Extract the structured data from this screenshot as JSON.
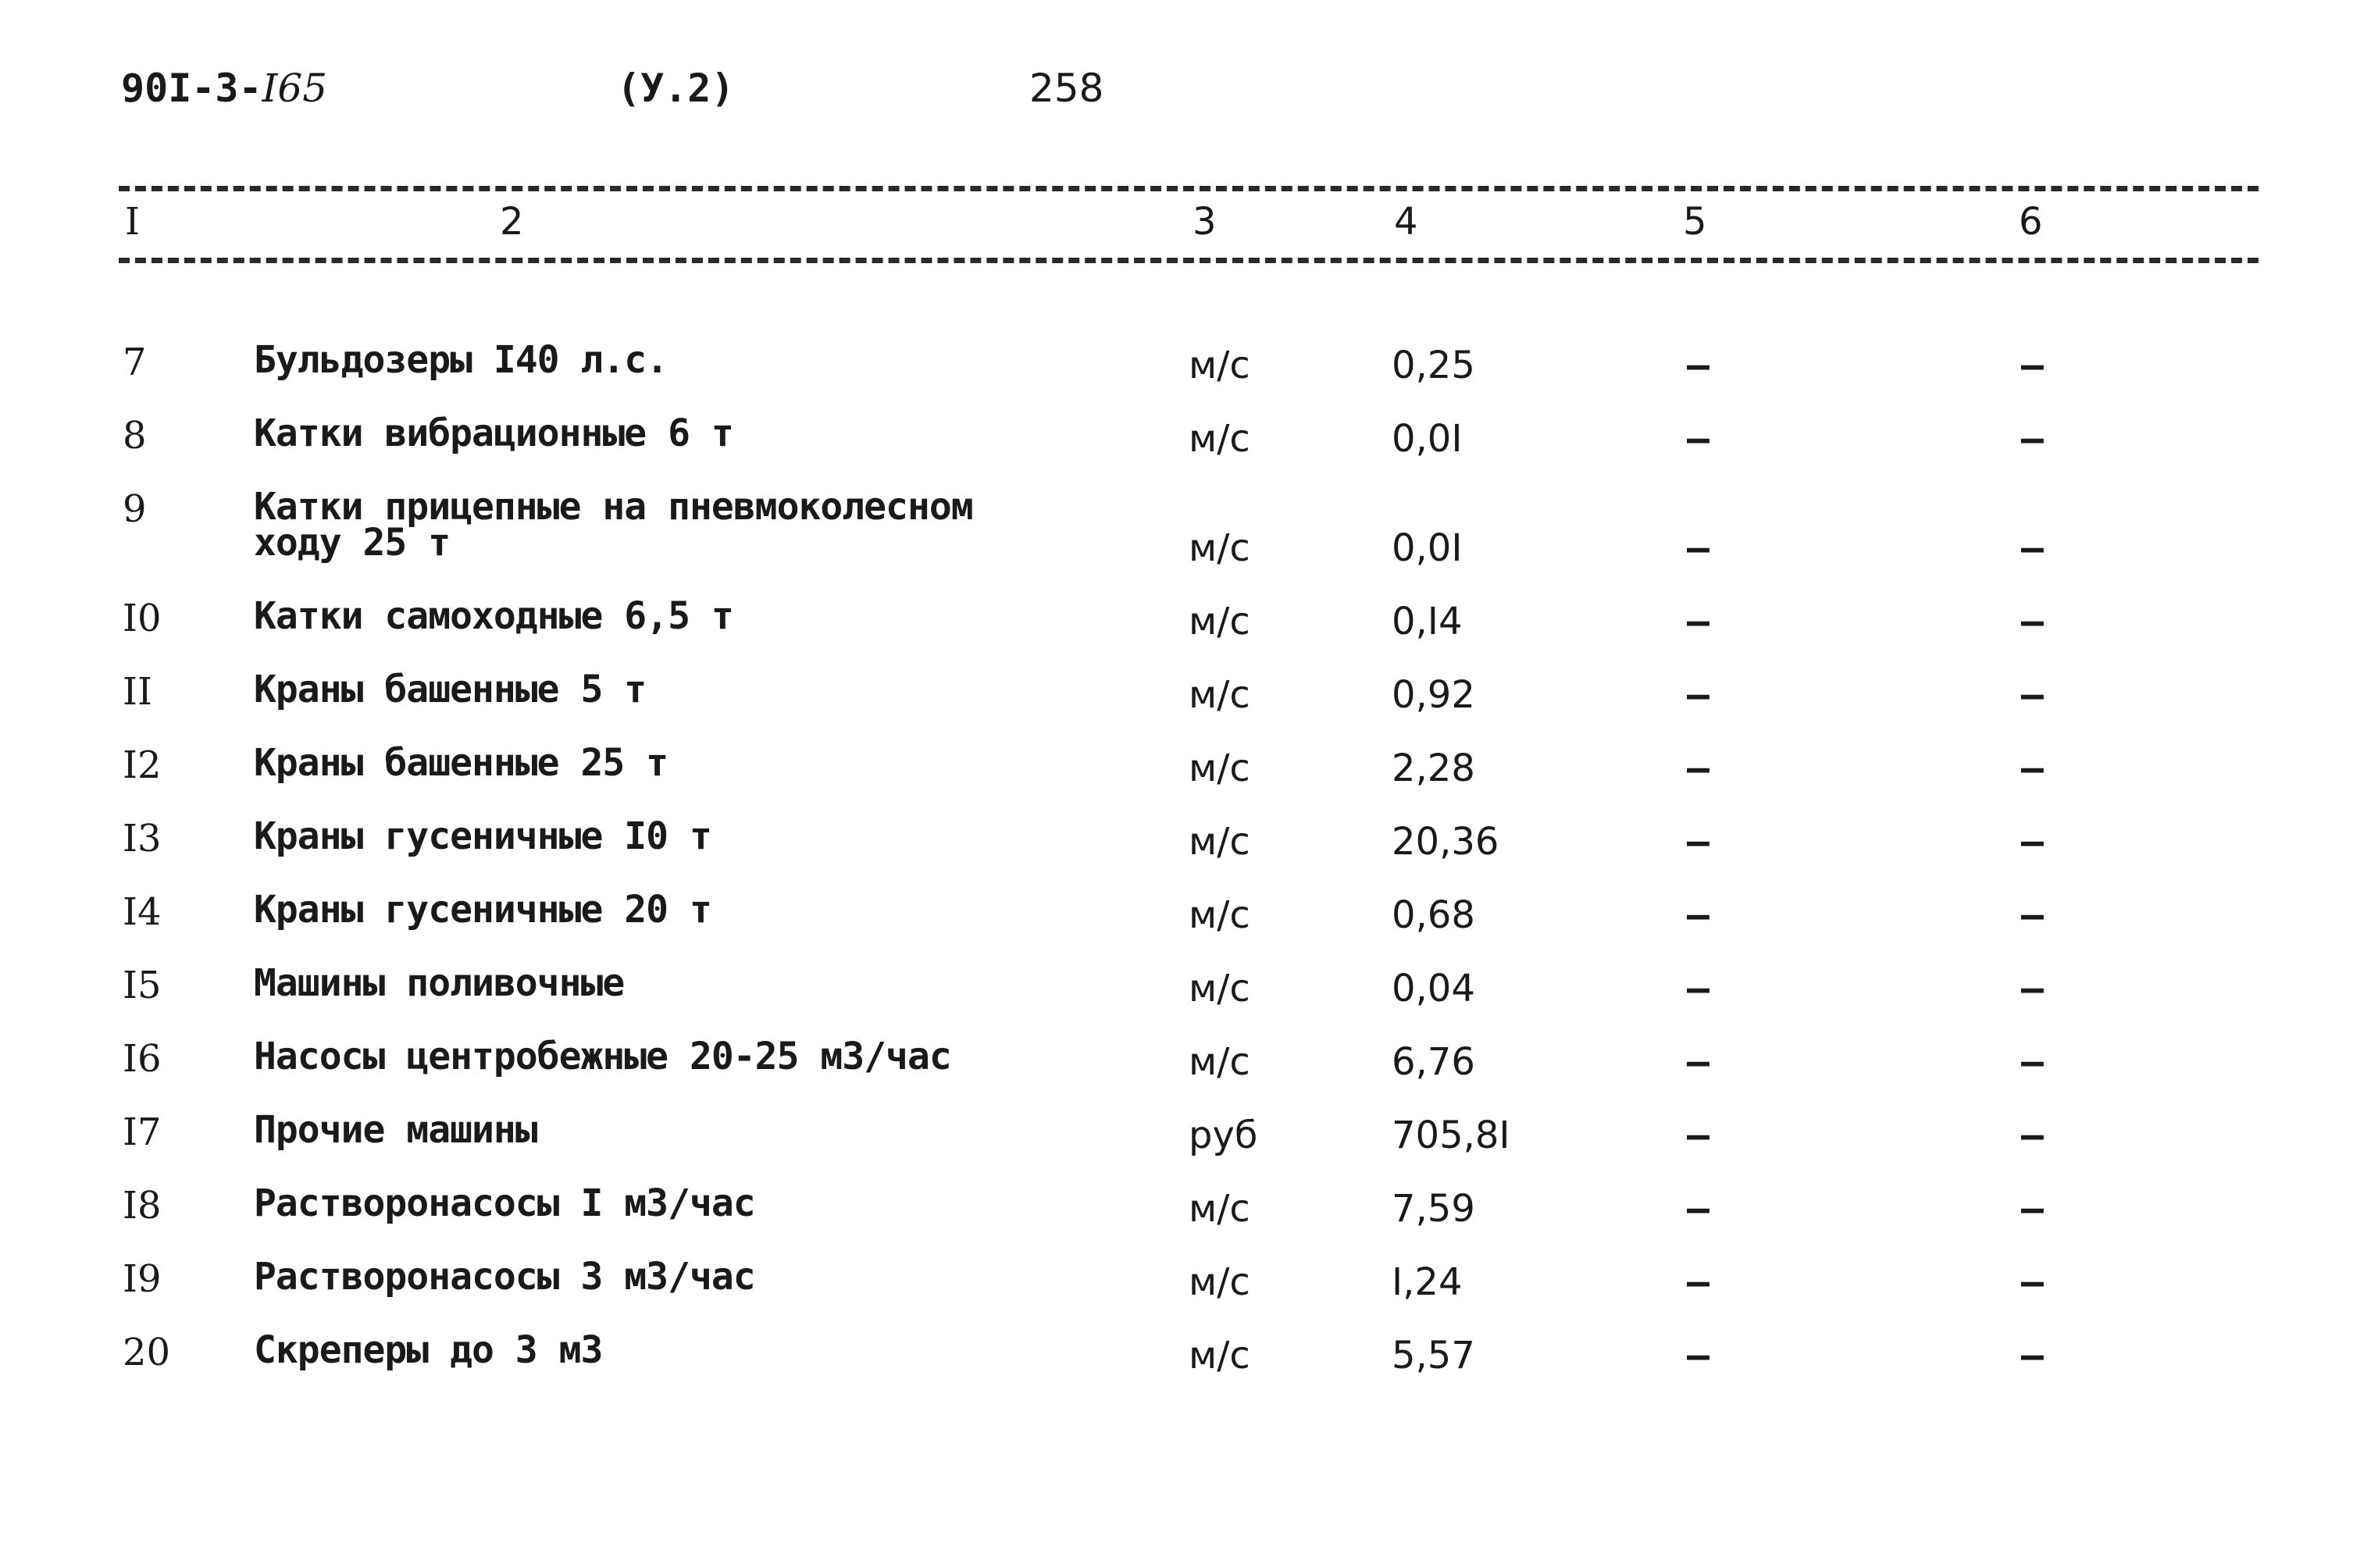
{
  "header": {
    "code_prefix": "90I-3-",
    "code_number": "I65",
    "section": "(У.2)",
    "page_number": "258"
  },
  "columns": [
    "I",
    "2",
    "3",
    "4",
    "5",
    "6"
  ],
  "rows": [
    {
      "num": "7",
      "name": [
        "Бульдозеры I40 л.с."
      ],
      "unit": "м/с",
      "qty": "0,25",
      "c5": "–",
      "c6": "–"
    },
    {
      "num": "8",
      "name": [
        "Катки вибрационные 6 т"
      ],
      "unit": "м/с",
      "qty": "0,0I",
      "c5": "–",
      "c6": "–"
    },
    {
      "num": "9",
      "name": [
        "Катки прицепные на пневмоколесном",
        "ходу 25 т"
      ],
      "unit": "м/с",
      "qty": "0,0I",
      "c5": "–",
      "c6": "–"
    },
    {
      "num": "I0",
      "name": [
        "Катки самоходные 6,5 т"
      ],
      "unit": "м/с",
      "qty": "0,I4",
      "c5": "–",
      "c6": "–"
    },
    {
      "num": "II",
      "name": [
        "Краны башенные 5 т"
      ],
      "unit": "м/с",
      "qty": "0,92",
      "c5": "–",
      "c6": "–"
    },
    {
      "num": "I2",
      "name": [
        "Краны башенные 25 т"
      ],
      "unit": "м/с",
      "qty": "2,28",
      "c5": "–",
      "c6": "–"
    },
    {
      "num": "I3",
      "name": [
        "Краны гусеничные I0 т"
      ],
      "unit": "м/с",
      "qty": "20,36",
      "c5": "–",
      "c6": "–"
    },
    {
      "num": "I4",
      "name": [
        "Краны гусеничные 20 т"
      ],
      "unit": "м/с",
      "qty": "0,68",
      "c5": "–",
      "c6": "–"
    },
    {
      "num": "I5",
      "name": [
        "Машины поливочные"
      ],
      "unit": "м/с",
      "qty": "0,04",
      "c5": "–",
      "c6": "–"
    },
    {
      "num": "I6",
      "name": [
        "Насосы центробежные 20-25 м3/час"
      ],
      "unit": "м/с",
      "qty": "6,76",
      "c5": "–",
      "c6": "–"
    },
    {
      "num": "I7",
      "name": [
        "Прочие машины"
      ],
      "unit": "руб",
      "qty": "705,8I",
      "c5": "–",
      "c6": "–"
    },
    {
      "num": "I8",
      "name": [
        "Растворонасосы I м3/час"
      ],
      "unit": "м/с",
      "qty": "7,59",
      "c5": "–",
      "c6": "–"
    },
    {
      "num": "I9",
      "name": [
        "Растворонасосы 3 м3/час"
      ],
      "unit": "м/с",
      "qty": "I,24",
      "c5": "–",
      "c6": "–"
    },
    {
      "num": "20",
      "name": [
        "Скреперы до 3 м3"
      ],
      "unit": "м/с",
      "qty": "5,57",
      "c5": "–",
      "c6": "–"
    }
  ]
}
